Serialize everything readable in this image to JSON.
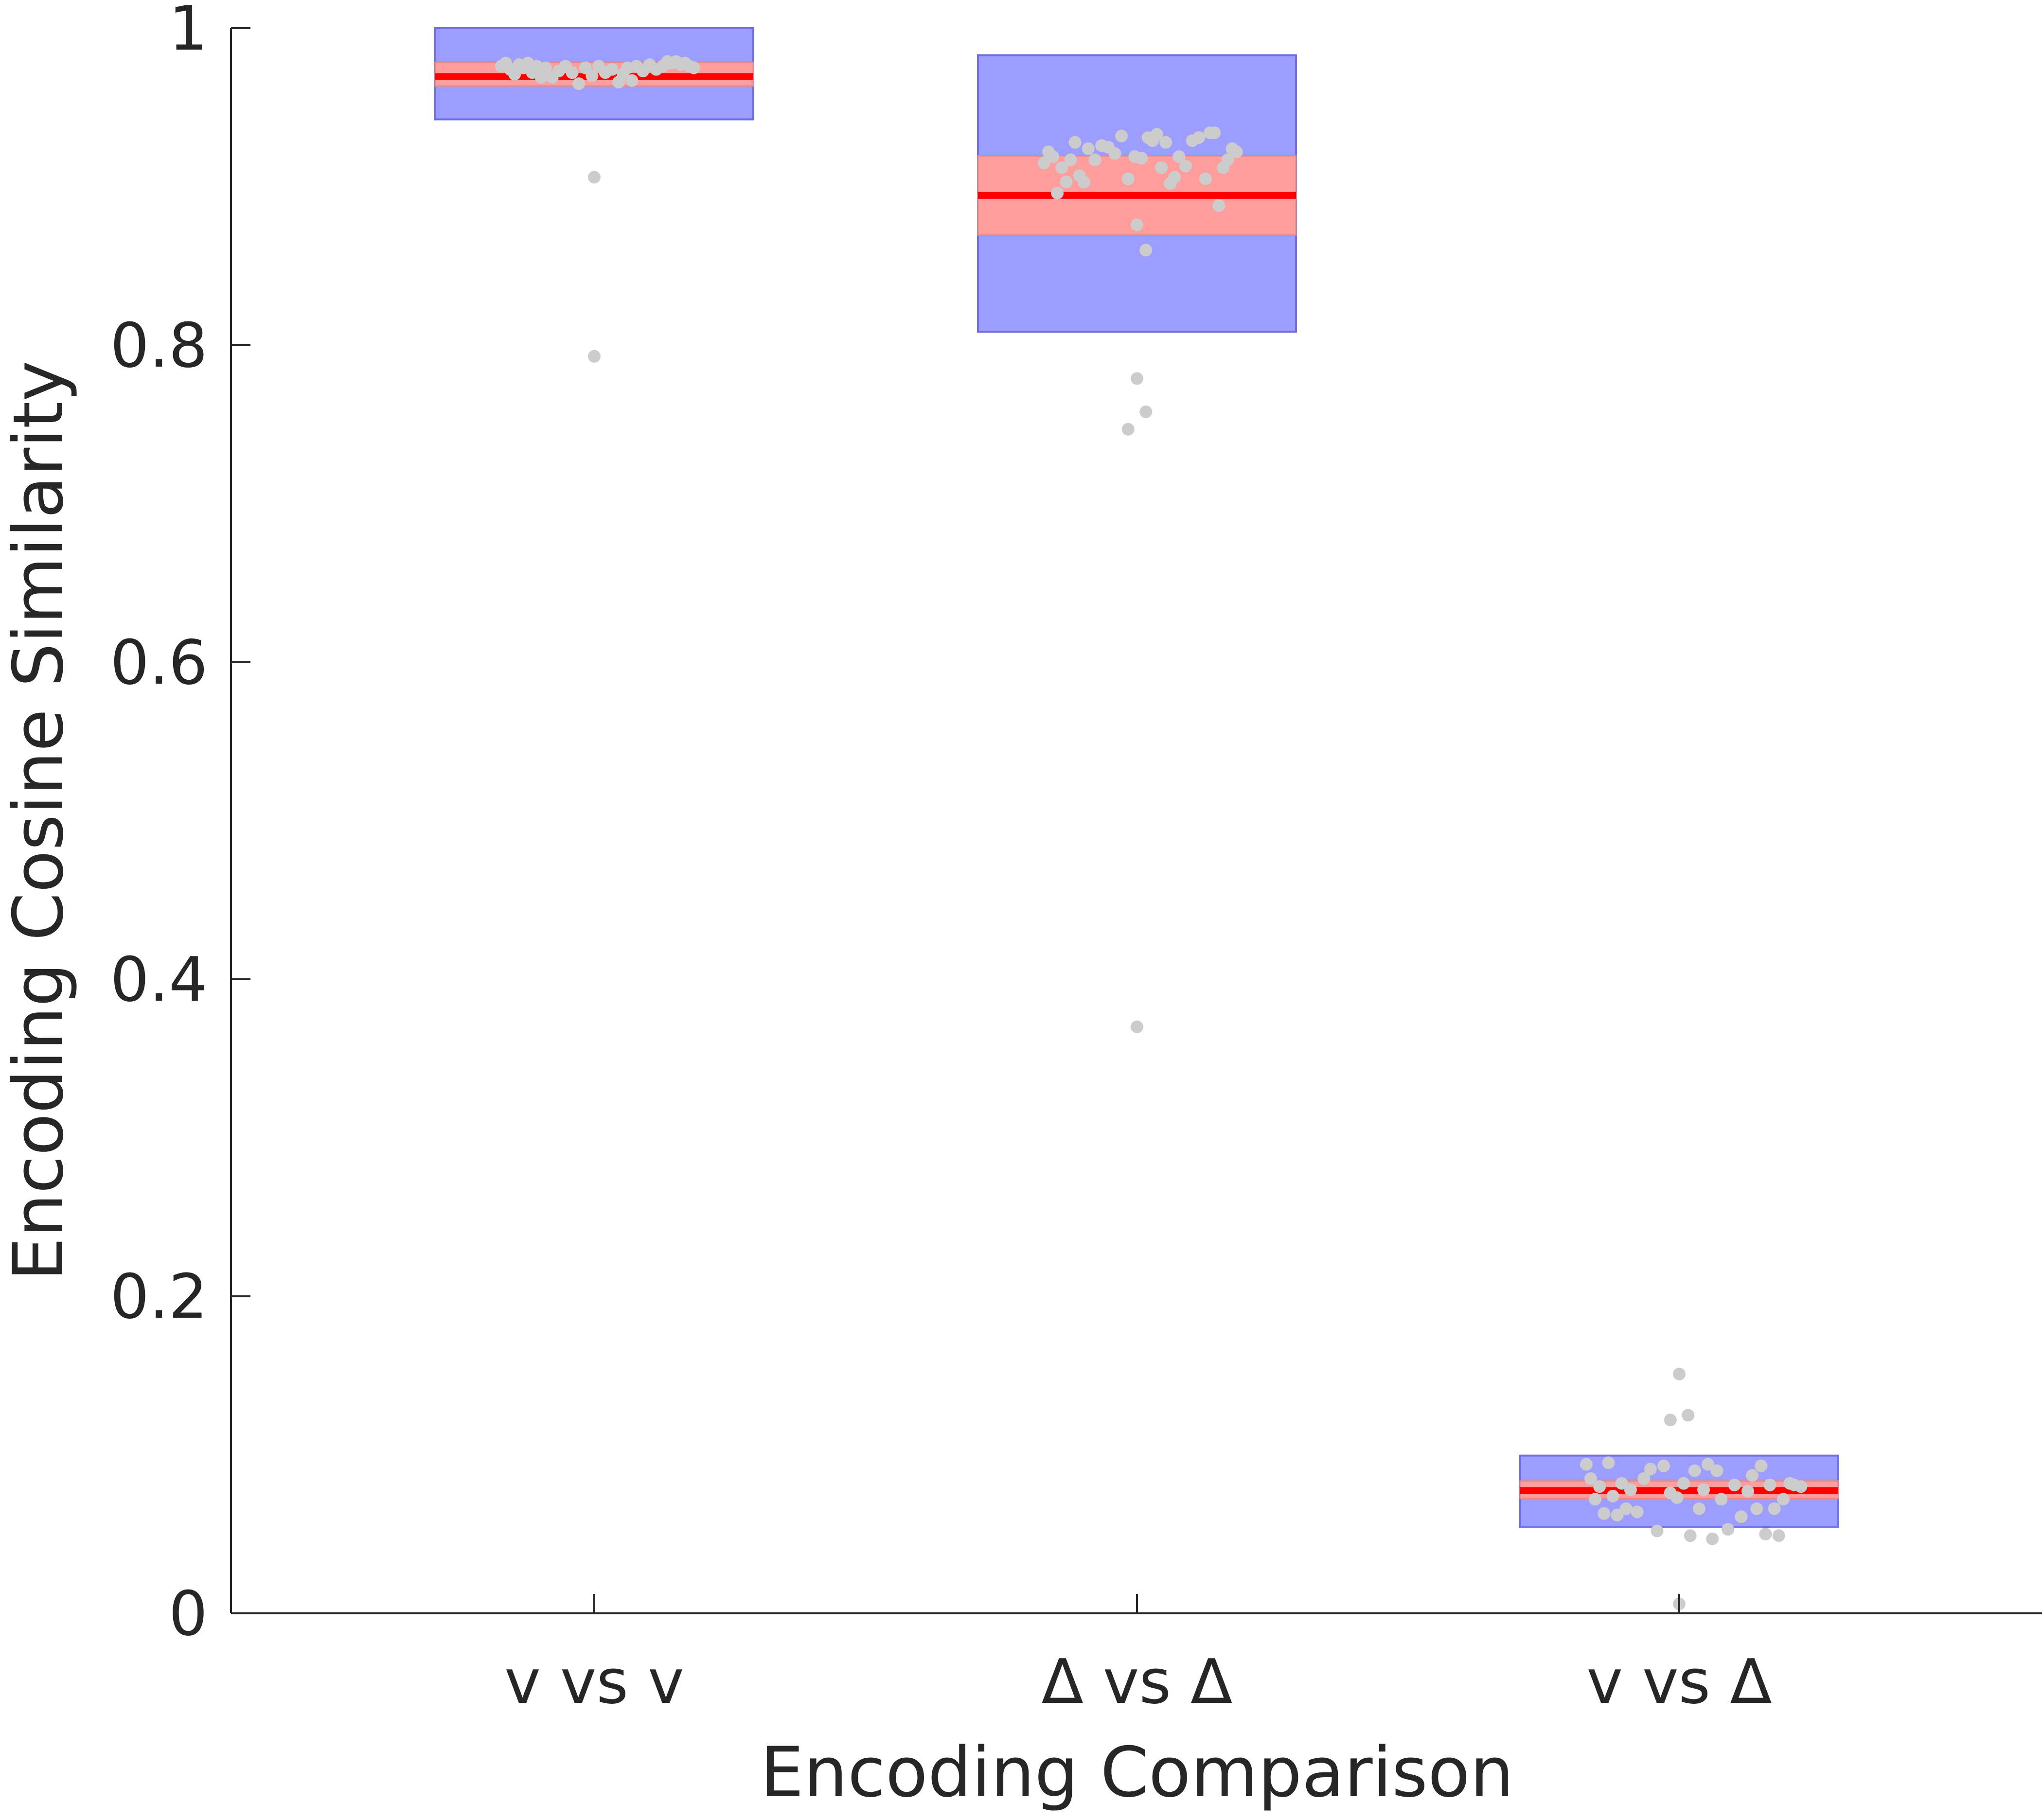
{
  "chart_data": {
    "type": "box",
    "xlabel": "Encoding Comparison",
    "ylabel": "Encoding Cosine Similarity",
    "ylim": [
      0,
      1
    ],
    "yticks": [
      0,
      0.2,
      0.4,
      0.6,
      0.8,
      1
    ],
    "ytick_labels": [
      "0",
      "0.2",
      "0.4",
      "0.6",
      "0.8",
      "1"
    ],
    "categories": [
      "v vs v",
      "Δ vs Δ",
      "v vs Δ"
    ],
    "colors": {
      "box": "#9d9dff",
      "box_edge": "#7070e6",
      "ci_band": "#ff9d9d",
      "median": "#ff0000",
      "points": "#cccccc",
      "axis": "#262626"
    },
    "groups": [
      {
        "category": "v vs v",
        "median": 0.9695,
        "ci": [
          0.9635,
          0.9785
        ],
        "box": [
          0.9425,
          1.0
        ],
        "points": [
          {
            "x": -0.42,
            "y": 0.976
          },
          {
            "x": -0.4,
            "y": 0.978
          },
          {
            "x": -0.38,
            "y": 0.974
          },
          {
            "x": -0.36,
            "y": 0.971
          },
          {
            "x": -0.34,
            "y": 0.977
          },
          {
            "x": -0.32,
            "y": 0.975
          },
          {
            "x": -0.3,
            "y": 0.978
          },
          {
            "x": -0.28,
            "y": 0.972
          },
          {
            "x": -0.26,
            "y": 0.976
          },
          {
            "x": -0.24,
            "y": 0.969
          },
          {
            "x": -0.22,
            "y": 0.975
          },
          {
            "x": -0.19,
            "y": 0.969
          },
          {
            "x": -0.16,
            "y": 0.973
          },
          {
            "x": -0.13,
            "y": 0.976
          },
          {
            "x": -0.1,
            "y": 0.972
          },
          {
            "x": -0.07,
            "y": 0.965
          },
          {
            "x": -0.04,
            "y": 0.975
          },
          {
            "x": -0.01,
            "y": 0.97
          },
          {
            "x": 0.02,
            "y": 0.976
          },
          {
            "x": 0.05,
            "y": 0.972
          },
          {
            "x": 0.08,
            "y": 0.974
          },
          {
            "x": 0.11,
            "y": 0.966
          },
          {
            "x": 0.13,
            "y": 0.971
          },
          {
            "x": 0.15,
            "y": 0.975
          },
          {
            "x": 0.17,
            "y": 0.967
          },
          {
            "x": 0.19,
            "y": 0.976
          },
          {
            "x": 0.22,
            "y": 0.973
          },
          {
            "x": 0.25,
            "y": 0.977
          },
          {
            "x": 0.28,
            "y": 0.974
          },
          {
            "x": 0.31,
            "y": 0.976
          },
          {
            "x": 0.33,
            "y": 0.979
          },
          {
            "x": 0.35,
            "y": 0.978
          },
          {
            "x": 0.37,
            "y": 0.979
          },
          {
            "x": 0.39,
            "y": 0.977
          },
          {
            "x": 0.41,
            "y": 0.978
          },
          {
            "x": 0.43,
            "y": 0.976
          },
          {
            "x": 0.45,
            "y": 0.975
          },
          {
            "x": 0.0,
            "y": 0.906
          },
          {
            "x": 0.0,
            "y": 0.793
          }
        ]
      },
      {
        "category": "Δ vs Δ",
        "median": 0.8945,
        "ci": [
          0.8695,
          0.9195
        ],
        "box": [
          0.8085,
          0.983
        ],
        "points": [
          {
            "x": -0.42,
            "y": 0.915
          },
          {
            "x": -0.4,
            "y": 0.922
          },
          {
            "x": -0.38,
            "y": 0.919
          },
          {
            "x": -0.36,
            "y": 0.896
          },
          {
            "x": -0.34,
            "y": 0.912
          },
          {
            "x": -0.32,
            "y": 0.903
          },
          {
            "x": -0.3,
            "y": 0.917
          },
          {
            "x": -0.28,
            "y": 0.928
          },
          {
            "x": -0.26,
            "y": 0.907
          },
          {
            "x": -0.24,
            "y": 0.903
          },
          {
            "x": -0.22,
            "y": 0.924
          },
          {
            "x": -0.19,
            "y": 0.917
          },
          {
            "x": -0.16,
            "y": 0.926
          },
          {
            "x": -0.13,
            "y": 0.925
          },
          {
            "x": -0.1,
            "y": 0.921
          },
          {
            "x": -0.07,
            "y": 0.932
          },
          {
            "x": -0.04,
            "y": 0.905
          },
          {
            "x": -0.01,
            "y": 0.919
          },
          {
            "x": 0.02,
            "y": 0.918
          },
          {
            "x": 0.05,
            "y": 0.931
          },
          {
            "x": 0.07,
            "y": 0.929
          },
          {
            "x": 0.09,
            "y": 0.933
          },
          {
            "x": 0.11,
            "y": 0.912
          },
          {
            "x": 0.13,
            "y": 0.928
          },
          {
            "x": 0.15,
            "y": 0.902
          },
          {
            "x": 0.17,
            "y": 0.906
          },
          {
            "x": 0.19,
            "y": 0.919
          },
          {
            "x": 0.22,
            "y": 0.913
          },
          {
            "x": 0.25,
            "y": 0.929
          },
          {
            "x": 0.28,
            "y": 0.931
          },
          {
            "x": 0.31,
            "y": 0.905
          },
          {
            "x": 0.33,
            "y": 0.934
          },
          {
            "x": 0.35,
            "y": 0.934
          },
          {
            "x": 0.37,
            "y": 0.888
          },
          {
            "x": 0.39,
            "y": 0.912
          },
          {
            "x": 0.41,
            "y": 0.917
          },
          {
            "x": 0.43,
            "y": 0.924
          },
          {
            "x": 0.45,
            "y": 0.922
          },
          {
            "x": 0.0,
            "y": 0.876
          },
          {
            "x": 0.04,
            "y": 0.86
          },
          {
            "x": 0.0,
            "y": 0.779
          },
          {
            "x": 0.04,
            "y": 0.758
          },
          {
            "x": -0.04,
            "y": 0.747
          },
          {
            "x": 0.0,
            "y": 0.37
          }
        ]
      },
      {
        "category": "v vs Δ",
        "median": 0.0775,
        "ci": [
          0.0725,
          0.0835
        ],
        "box": [
          0.0545,
          0.0995
        ],
        "points": [
          {
            "x": -0.42,
            "y": 0.094
          },
          {
            "x": -0.4,
            "y": 0.085
          },
          {
            "x": -0.38,
            "y": 0.072
          },
          {
            "x": -0.36,
            "y": 0.08
          },
          {
            "x": -0.34,
            "y": 0.063
          },
          {
            "x": -0.32,
            "y": 0.095
          },
          {
            "x": -0.3,
            "y": 0.074
          },
          {
            "x": -0.28,
            "y": 0.062
          },
          {
            "x": -0.26,
            "y": 0.082
          },
          {
            "x": -0.24,
            "y": 0.066
          },
          {
            "x": -0.22,
            "y": 0.078
          },
          {
            "x": -0.19,
            "y": 0.064
          },
          {
            "x": -0.16,
            "y": 0.085
          },
          {
            "x": -0.13,
            "y": 0.091
          },
          {
            "x": -0.1,
            "y": 0.052
          },
          {
            "x": -0.07,
            "y": 0.093
          },
          {
            "x": -0.04,
            "y": 0.076
          },
          {
            "x": -0.01,
            "y": 0.073
          },
          {
            "x": 0.02,
            "y": 0.082
          },
          {
            "x": 0.05,
            "y": 0.049
          },
          {
            "x": 0.07,
            "y": 0.09
          },
          {
            "x": 0.09,
            "y": 0.066
          },
          {
            "x": 0.11,
            "y": 0.078
          },
          {
            "x": 0.13,
            "y": 0.094
          },
          {
            "x": 0.15,
            "y": 0.047
          },
          {
            "x": 0.17,
            "y": 0.09
          },
          {
            "x": 0.19,
            "y": 0.072
          },
          {
            "x": 0.22,
            "y": 0.053
          },
          {
            "x": 0.25,
            "y": 0.081
          },
          {
            "x": 0.28,
            "y": 0.061
          },
          {
            "x": 0.31,
            "y": 0.077
          },
          {
            "x": 0.33,
            "y": 0.087
          },
          {
            "x": 0.35,
            "y": 0.066
          },
          {
            "x": 0.37,
            "y": 0.093
          },
          {
            "x": 0.39,
            "y": 0.05
          },
          {
            "x": 0.41,
            "y": 0.081
          },
          {
            "x": 0.43,
            "y": 0.066
          },
          {
            "x": 0.45,
            "y": 0.049
          },
          {
            "x": 0.47,
            "y": 0.072
          },
          {
            "x": 0.5,
            "y": 0.082
          },
          {
            "x": 0.52,
            "y": 0.081
          },
          {
            "x": 0.55,
            "y": 0.08
          },
          {
            "x": -0.04,
            "y": 0.122
          },
          {
            "x": 0.0,
            "y": 0.151
          },
          {
            "x": 0.04,
            "y": 0.125
          },
          {
            "x": 0.0,
            "y": 0.006
          }
        ]
      }
    ]
  }
}
